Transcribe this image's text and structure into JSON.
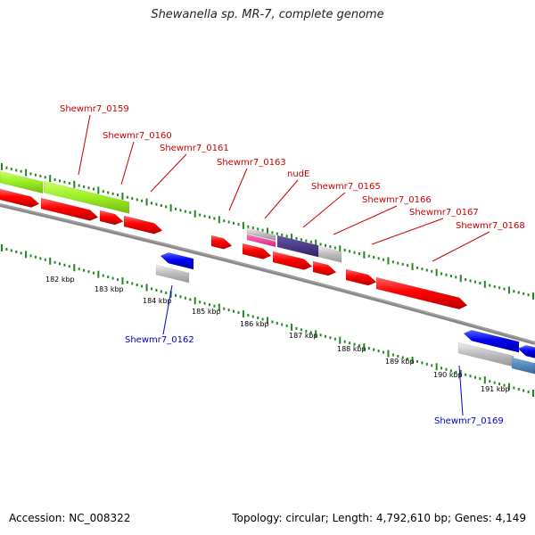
{
  "title": "Shewanella sp. MR-7, complete genome",
  "footer": {
    "accession": "Accession: NC_008322",
    "topology": "Topology: circular; Length: 4,792,610 bp; Genes: 4,149"
  },
  "ticks": [
    "182 kbp",
    "183 kbp",
    "184 kbp",
    "185 kbp",
    "186 kbp",
    "187 kbp",
    "188 kbp",
    "189 kbp",
    "190 kbp",
    "191 kbp"
  ],
  "genes_top": [
    "Shewmr7_0159",
    "Shewmr7_0160",
    "Shewmr7_0161",
    "Shewmr7_0163",
    "nudE",
    "Shewmr7_0165",
    "Shewmr7_0166",
    "Shewmr7_0167",
    "Shewmr7_0168"
  ],
  "genes_bottom": [
    "Shewmr7_0162",
    "Shewmr7_0169"
  ],
  "colors": {
    "forward_cds": "#ff0000",
    "reverse_cds": "#0000ee",
    "label_forward": "#cc0000",
    "label_reverse": "#0000cc",
    "lime_feature": "#99ee22",
    "gray_feature": "#bbbbbb",
    "pink_feature": "#ee3399",
    "purple_feature": "#443388",
    "steel_feature": "#4488bb",
    "backbone": "#888888",
    "dots": "#228822"
  }
}
